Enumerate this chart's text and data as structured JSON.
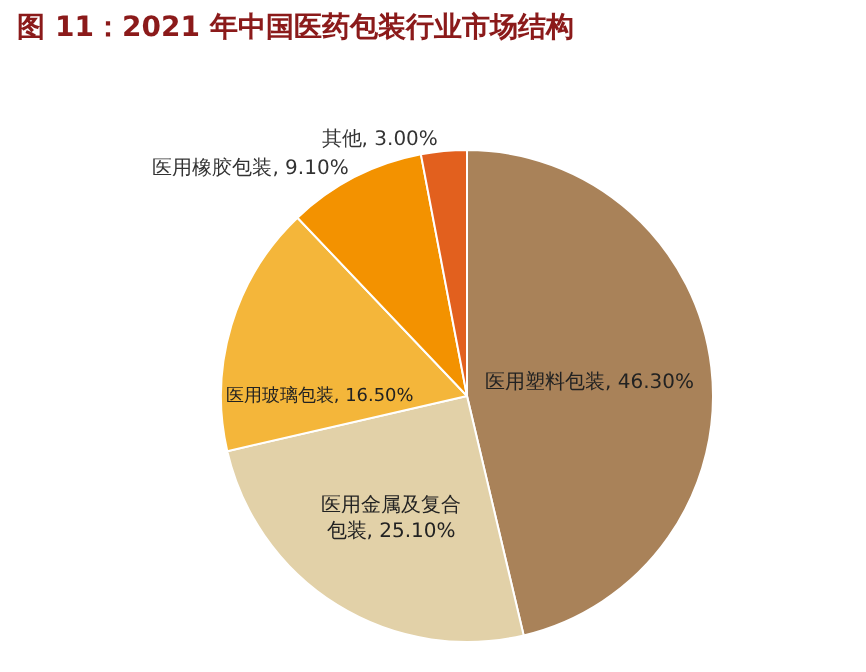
{
  "chart_data": {
    "type": "pie",
    "title": "图 11：2021 年中国医药包装行业市场结构",
    "categories": [
      "医用塑料包装",
      "医用金属及复合包装",
      "医用玻璃包装",
      "医用橡胶包装",
      "其他"
    ],
    "values": [
      46.3,
      25.1,
      16.5,
      9.1,
      3.0
    ],
    "value_labels": [
      "46.30%",
      "25.10%",
      "16.50%",
      "9.10%",
      "3.00%"
    ],
    "colors": [
      "#a98259",
      "#e2d1a8",
      "#f4b63a",
      "#f39200",
      "#e2601e"
    ],
    "legend": false
  }
}
